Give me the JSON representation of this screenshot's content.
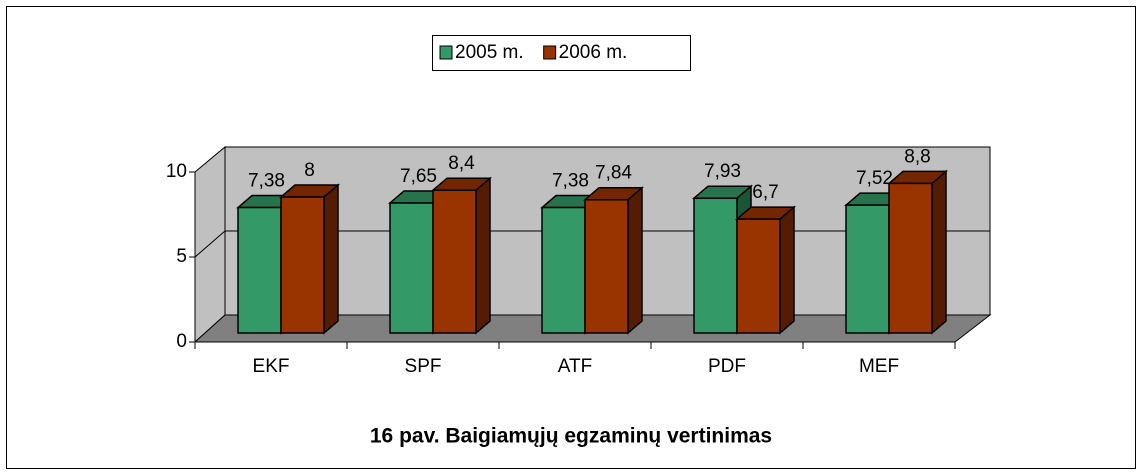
{
  "chart_data": {
    "type": "bar3d",
    "title": "16 pav. Baigiamųjų egzaminų vertinimas",
    "categories": [
      "EKF",
      "SPF",
      "ATF",
      "PDF",
      "MEF"
    ],
    "series": [
      {
        "name": "2005 m.",
        "color": "#339966",
        "values": [
          7.38,
          7.65,
          7.38,
          7.93,
          7.52
        ],
        "value_labels": [
          "7,38",
          "7,65",
          "7,38",
          "7,93",
          "7,52"
        ]
      },
      {
        "name": "2006 m.",
        "color": "#993300",
        "values": [
          8,
          8.4,
          7.84,
          6.7,
          8.8
        ],
        "value_labels": [
          "8",
          "8,4",
          "7,84",
          "6,7",
          "8,8"
        ]
      }
    ],
    "ylim": [
      0,
      10
    ],
    "yticks": [
      0,
      5,
      10
    ],
    "grid": true,
    "legend": "top"
  }
}
